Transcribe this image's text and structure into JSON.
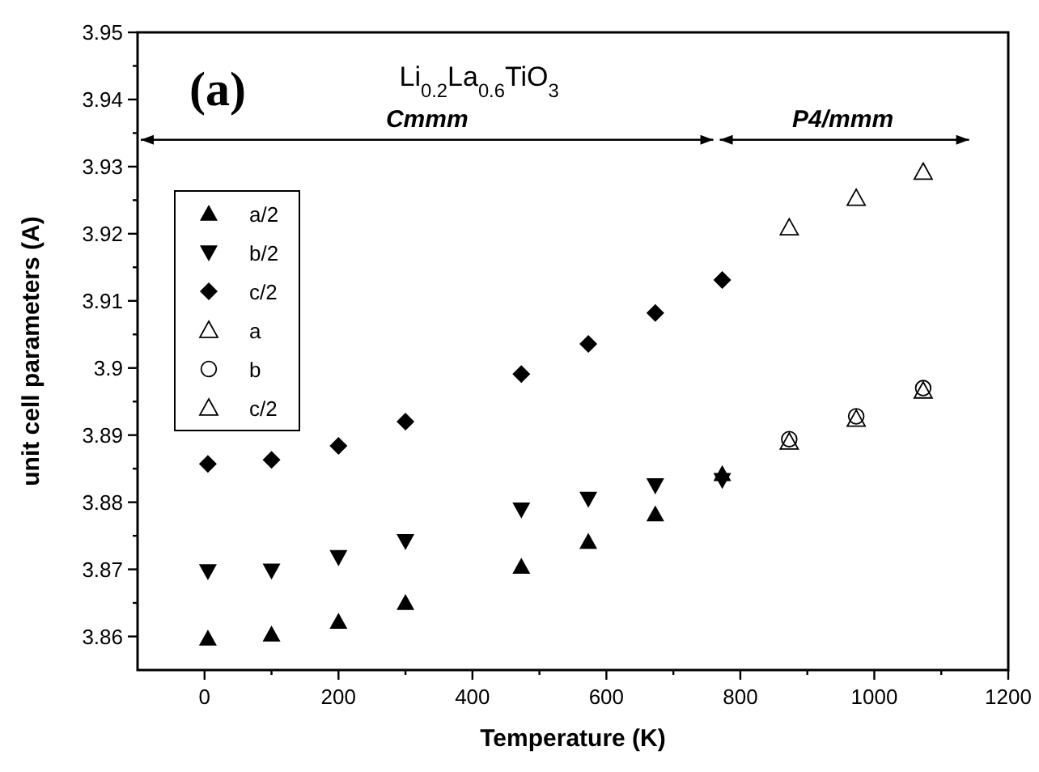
{
  "chart_data": {
    "type": "scatter",
    "title": "Li$_{0.2}$La$_{0.6}$TiO$_{3}$",
    "xlabel": "Temperature (K)",
    "ylabel": "unit cell parameters (A)",
    "annotations": [
      "(a)",
      "Cmmm",
      "P4/mmm"
    ],
    "xlim": [
      -100,
      1200
    ],
    "xticks": [
      0,
      {
        "value": 100,
        "label": null
      },
      200,
      {
        "value": 300,
        "label": null
      },
      400,
      {
        "value": 500,
        "label": null
      },
      600,
      {
        "value": 700,
        "label": null
      },
      800,
      {
        "value": 900,
        "label": null
      },
      1000,
      {
        "value": 1100,
        "label": null
      },
      1200
    ],
    "ylim": [
      3.855,
      3.95
    ],
    "yticks": [
      3.86,
      {
        "value": 3.865,
        "label": null
      },
      3.87,
      {
        "value": 3.875,
        "label": null
      },
      3.88,
      {
        "value": 3.885,
        "label": null
      },
      3.89,
      {
        "value": 3.895,
        "label": null
      },
      3.9,
      {
        "value": 3.905,
        "label": null
      },
      3.91,
      {
        "value": 3.915,
        "label": null
      },
      3.92,
      {
        "value": 3.925,
        "label": null
      },
      3.93,
      {
        "value": 3.935,
        "label": null
      },
      3.94,
      {
        "value": 3.945,
        "label": null
      },
      3.95
    ],
    "legend": "top left",
    "grid": false,
    "series": [
      {
        "name": "a/2",
        "color": "#000000",
        "marker": "triangle",
        "x": [
          5,
          100,
          200,
          300,
          473,
          573,
          673,
          773
        ],
        "values": [
          3.8597,
          3.8603,
          3.8622,
          3.865,
          3.8704,
          3.8741,
          3.8782,
          3.8842
        ]
      },
      {
        "name": "b/2",
        "color": "#000000",
        "marker": "triangle-down",
        "x": [
          5,
          100,
          200,
          300,
          473,
          573,
          673,
          773
        ],
        "values": [
          3.8697,
          3.8698,
          3.8718,
          3.8742,
          3.8789,
          3.8805,
          3.8825,
          3.8833
        ]
      },
      {
        "name": "c/2",
        "color": "#000000",
        "marker": "diamond",
        "x": [
          5,
          100,
          200,
          300,
          473,
          573,
          673,
          773
        ],
        "values": [
          3.8857,
          3.8863,
          3.8884,
          3.892,
          3.8991,
          3.9036,
          3.9082,
          3.9131
        ]
      },
      {
        "name": "a",
        "color": "#000000",
        "marker": "triangle-open",
        "x": [
          873,
          973,
          1073
        ],
        "values": [
          3.889,
          3.8924,
          3.8966
        ]
      },
      {
        "name": "b",
        "color": "#000000",
        "marker": "circle-open",
        "x": [
          873,
          973,
          1073
        ],
        "values": [
          3.8894,
          3.8928,
          3.897
        ]
      },
      {
        "name": "c/2",
        "color": "#000000",
        "marker": "triangle-open",
        "x": [
          873,
          973,
          1073
        ],
        "values": [
          3.9209,
          3.9253,
          3.9292
        ]
      }
    ]
  }
}
